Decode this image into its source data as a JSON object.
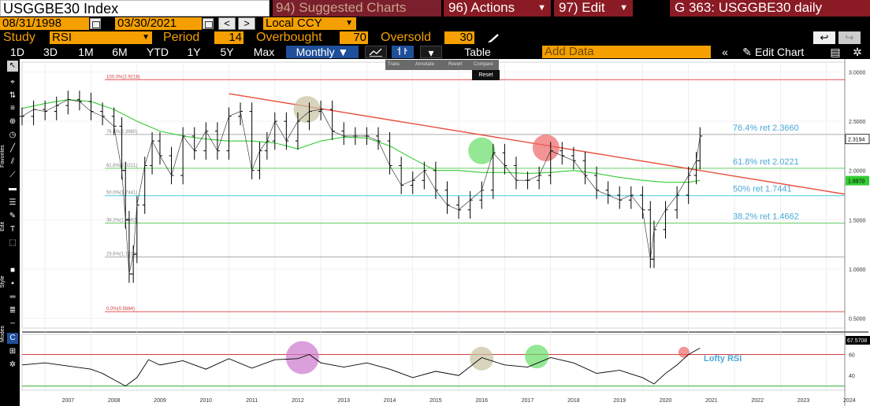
{
  "header": {
    "ticker": "USGGBE30 Index",
    "suggested_charts": "94) Suggested Charts",
    "actions": "96) Actions",
    "edit": "97) Edit",
    "chart_id": "G 363: USGGBE30 daily",
    "start_date": "08/31/1998",
    "end_date": "03/30/2021",
    "currency": "Local CCY"
  },
  "study_bar": {
    "study_label": "Study",
    "study_value": "RSI",
    "period_label": "Period",
    "period_value": "14",
    "overbought_label": "Overbought",
    "overbought_value": "70",
    "oversold_label": "Oversold",
    "oversold_value": "30"
  },
  "ranges": {
    "items": [
      "1D",
      "3D",
      "1M",
      "6M",
      "YTD",
      "1Y",
      "5Y",
      "Max"
    ],
    "frequency": "Monthly",
    "table": "Table",
    "add_data_placeholder": "Add Data",
    "edit_chart": "Edit Chart"
  },
  "toolbar_labels": {
    "favorites": "Favorites",
    "edit": "Edit",
    "style": "Style",
    "modes": "Modes"
  },
  "mini_toolbar": {
    "items": [
      "Trans",
      "Annotate",
      "Revert",
      "Compare"
    ],
    "reset": "Reset"
  },
  "colors": {
    "accent_orange": "#f5a000",
    "bloomberg_red": "#8a1a24",
    "price": "#000000",
    "ma": "#33cc33",
    "trendline": "#e8503c",
    "fib_100_0": "#e05050",
    "fib_green": "#66cc66",
    "fib_cyan": "#44ccdd",
    "fib_grey": "#aaaaaa"
  },
  "chart_data": {
    "type": "line",
    "series_kind": "monthly bar (OHLC) price with moving average",
    "x_tick_labels": [
      "2007",
      "2008",
      "2009",
      "2010",
      "2011",
      "2012",
      "2013",
      "2014",
      "2015",
      "2016",
      "2017",
      "2018",
      "2019",
      "2020",
      "2021",
      "2022",
      "2023",
      "2024"
    ],
    "price_axis": {
      "ylim": [
        0.4,
        3.1
      ],
      "tick_labels": [
        "3.0000",
        "2.5000",
        "2.0000",
        "1.5000",
        "1.0000",
        "0.5000"
      ]
    },
    "rsi_axis": {
      "ylim": [
        26,
        79
      ],
      "tick_labels": [
        "60",
        "40"
      ],
      "last_value": "67.5708"
    },
    "last_price_label": "2.3194",
    "ma_last_label": "1.8970",
    "price_series": {
      "x": [
        2006.5,
        2006.75,
        2007.0,
        2007.25,
        2007.5,
        2007.75,
        2008.0,
        2008.25,
        2008.5,
        2008.67,
        2008.75,
        2008.83,
        2008.92,
        2009.0,
        2009.17,
        2009.33,
        2009.5,
        2009.75,
        2010.0,
        2010.25,
        2010.5,
        2010.75,
        2011.0,
        2011.25,
        2011.5,
        2011.67,
        2011.83,
        2012.0,
        2012.25,
        2012.5,
        2012.75,
        2013.0,
        2013.25,
        2013.5,
        2013.75,
        2014.0,
        2014.25,
        2014.5,
        2014.75,
        2015.0,
        2015.25,
        2015.5,
        2015.75,
        2016.0,
        2016.25,
        2016.5,
        2016.75,
        2017.0,
        2017.25,
        2017.5,
        2017.75,
        2018.0,
        2018.25,
        2018.5,
        2018.75,
        2019.0,
        2019.25,
        2019.5,
        2019.75,
        2020.0,
        2020.17,
        2020.25,
        2020.5,
        2020.75,
        2021.0,
        2021.17,
        2021.25
      ],
      "y": [
        2.55,
        2.62,
        2.6,
        2.66,
        2.72,
        2.7,
        2.6,
        2.55,
        2.45,
        2.0,
        1.5,
        0.95,
        1.15,
        1.65,
        2.05,
        2.3,
        2.15,
        1.95,
        2.35,
        2.2,
        2.4,
        2.2,
        2.55,
        2.6,
        2.0,
        2.2,
        2.3,
        2.5,
        2.3,
        2.5,
        2.6,
        2.62,
        2.4,
        2.35,
        2.35,
        2.35,
        2.3,
        2.05,
        1.85,
        1.9,
        2.0,
        1.8,
        1.65,
        1.6,
        1.7,
        1.8,
        2.18,
        2.05,
        1.9,
        1.9,
        1.95,
        2.2,
        2.15,
        2.1,
        1.95,
        1.8,
        1.75,
        1.7,
        1.75,
        1.6,
        1.1,
        1.4,
        1.6,
        1.75,
        1.95,
        2.1,
        2.35
      ]
    },
    "ma_series": {
      "x": [
        2006.5,
        2007.0,
        2007.5,
        2008.0,
        2008.5,
        2009.0,
        2009.5,
        2010.0,
        2010.5,
        2011.0,
        2011.5,
        2012.0,
        2012.5,
        2013.0,
        2013.5,
        2014.0,
        2014.5,
        2015.0,
        2015.5,
        2016.0,
        2016.5,
        2017.0,
        2017.5,
        2018.0,
        2018.5,
        2019.0,
        2019.5,
        2020.0,
        2020.5,
        2021.0,
        2021.25
      ],
      "y": [
        2.63,
        2.68,
        2.72,
        2.7,
        2.62,
        2.5,
        2.4,
        2.35,
        2.32,
        2.3,
        2.3,
        2.28,
        2.22,
        2.3,
        2.34,
        2.33,
        2.25,
        2.12,
        2.0,
        2.0,
        1.98,
        1.98,
        1.97,
        1.98,
        2.0,
        1.97,
        1.93,
        1.9,
        1.88,
        1.88,
        1.9
      ]
    },
    "trendline": {
      "x": [
        2011.0,
        2024.4
      ],
      "y": [
        2.78,
        1.76
      ]
    },
    "fib_levels": [
      {
        "label": "100.0%(2.9218)",
        "value": 2.9218,
        "side_label": ""
      },
      {
        "label": "76.4%(2.3660)",
        "value": 2.366,
        "side_label": "76.4% ret 2.3660"
      },
      {
        "label": "61.8%(2.0221)",
        "value": 2.0221,
        "side_label": "61.8% ret 2.0221"
      },
      {
        "label": "50.0%(1.7441)",
        "value": 1.7441,
        "side_label": "50% ret 1.7441"
      },
      {
        "label": "38.2%(1.4662)",
        "value": 1.4662,
        "side_label": "38.2% ret 1.4662"
      },
      {
        "label": "23.6%(1.1223)",
        "value": 1.1223,
        "side_label": ""
      },
      {
        "label": "0.0%(0.5664)",
        "value": 0.5664,
        "side_label": ""
      }
    ],
    "price_highlights": [
      {
        "x": 2012.7,
        "y": 2.62,
        "color": "#c8c0a0"
      },
      {
        "x": 2016.5,
        "y": 2.2,
        "color": "#66dd66"
      },
      {
        "x": 2017.9,
        "y": 2.23,
        "color": "#ee6666"
      }
    ],
    "rsi_series": {
      "x": [
        2006.5,
        2007.0,
        2007.5,
        2008.0,
        2008.25,
        2008.5,
        2008.75,
        2009.0,
        2009.25,
        2009.5,
        2010.0,
        2010.5,
        2011.0,
        2011.5,
        2012.0,
        2012.5,
        2012.75,
        2013.0,
        2013.5,
        2014.0,
        2014.5,
        2015.0,
        2015.5,
        2016.0,
        2016.5,
        2017.0,
        2017.5,
        2018.0,
        2018.5,
        2019.0,
        2019.5,
        2020.0,
        2020.25,
        2020.5,
        2020.75,
        2021.0,
        2021.25
      ],
      "y": [
        50,
        52,
        49,
        46,
        42,
        36,
        30,
        38,
        55,
        50,
        54,
        46,
        56,
        47,
        55,
        56,
        60,
        52,
        48,
        52,
        46,
        38,
        44,
        40,
        57,
        50,
        48,
        57,
        52,
        42,
        45,
        38,
        32,
        42,
        50,
        60,
        66
      ]
    },
    "rsi_reference_lines": [
      60,
      30
    ],
    "rsi_highlights": [
      {
        "x": 2012.6,
        "y": 57,
        "color": "#cc77cc"
      },
      {
        "x": 2016.5,
        "y": 56,
        "color": "#c8c0a0"
      },
      {
        "x": 2017.7,
        "y": 58,
        "color": "#66dd66"
      },
      {
        "x": 2020.9,
        "y": 62,
        "color": "#ee6666"
      }
    ],
    "annotation": "Lofty RSI"
  }
}
